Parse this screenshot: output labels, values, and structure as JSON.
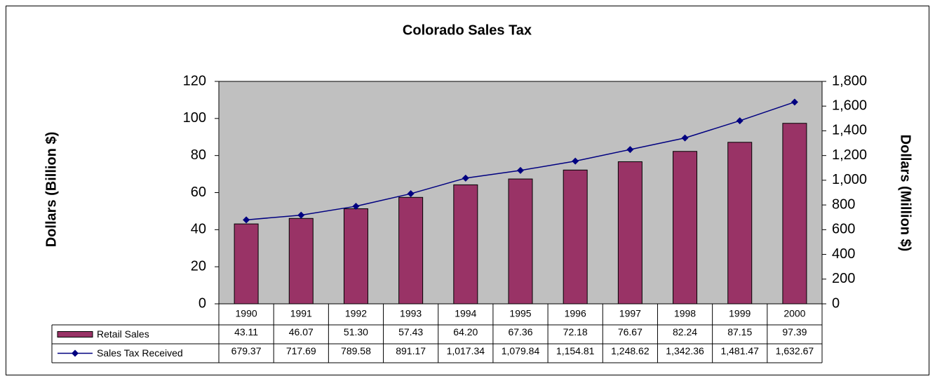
{
  "chart_data": {
    "type": "bar",
    "title": "Colorado Sales Tax",
    "y_label": "Dollars (Billion $)",
    "y2_label": "Dollars (Million $)",
    "categories": [
      "1990",
      "1991",
      "1992",
      "1993",
      "1994",
      "1995",
      "1996",
      "1997",
      "1998",
      "1999",
      "2000"
    ],
    "series": [
      {
        "name": "Retail Sales",
        "type": "bar",
        "color": "#993366",
        "values": [
          43.11,
          46.07,
          51.3,
          57.43,
          64.2,
          67.36,
          72.18,
          76.67,
          82.24,
          87.15,
          97.39
        ],
        "value_labels": [
          "43.11",
          "46.07",
          "51.30",
          "57.43",
          "64.20",
          "67.36",
          "72.18",
          "76.67",
          "82.24",
          "87.15",
          "97.39"
        ]
      },
      {
        "name": "Sales Tax Received",
        "type": "line",
        "axis": "y2",
        "color": "#000080",
        "values": [
          679.37,
          717.69,
          789.58,
          891.17,
          1017.34,
          1079.84,
          1154.81,
          1248.62,
          1342.36,
          1481.47,
          1632.67
        ],
        "value_labels": [
          "679.37",
          "717.69",
          "789.58",
          "891.17",
          "1,017.34",
          "1,079.84",
          "1,154.81",
          "1,248.62",
          "1,342.36",
          "1,481.47",
          "1,632.67"
        ]
      }
    ],
    "ylim": [
      0,
      120
    ],
    "yticks": [
      0,
      20,
      40,
      60,
      80,
      100,
      120
    ],
    "y2lim": [
      0,
      1800
    ],
    "y2ticks": [
      0,
      200,
      400,
      600,
      800,
      {
        "value": 1000,
        "label": "1,000"
      },
      {
        "value": 1200,
        "label": "1,200"
      },
      {
        "value": 1400,
        "label": "1,400"
      },
      {
        "value": 1600,
        "label": "1,600"
      },
      {
        "value": 1800,
        "label": "1,800"
      }
    ],
    "grid": false,
    "plot_background": "#c0c0c0"
  }
}
